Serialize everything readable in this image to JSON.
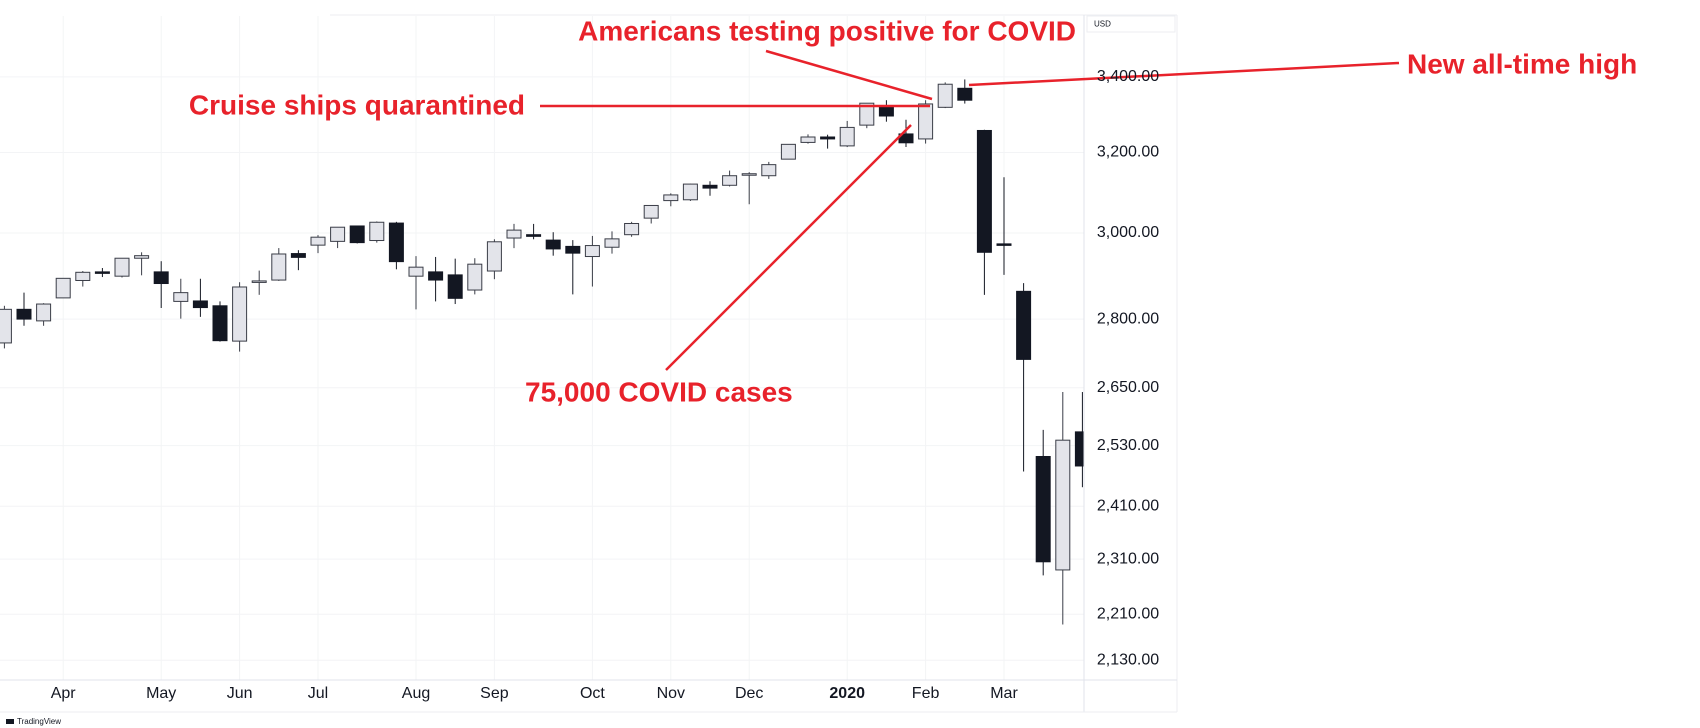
{
  "chart_data": {
    "type": "candlestick",
    "currency": "USD",
    "watermark": "TradingView",
    "categories": [
      null,
      null,
      null,
      "Apr",
      null,
      null,
      null,
      null,
      "May",
      null,
      null,
      null,
      "Jun",
      null,
      null,
      null,
      "Jul",
      null,
      null,
      null,
      null,
      "Aug",
      null,
      null,
      null,
      "Sep",
      null,
      null,
      null,
      null,
      "Oct",
      null,
      null,
      null,
      "Nov",
      null,
      null,
      null,
      "Dec",
      null,
      null,
      null,
      null,
      "2020",
      null,
      null,
      null,
      "Feb",
      null,
      null,
      null,
      "Mar",
      null,
      null,
      null,
      null
    ],
    "open": [
      2747,
      2822,
      2796,
      2848,
      2888,
      2908,
      2898,
      2940,
      2908,
      2840,
      2841,
      2830,
      2751,
      2885,
      2889,
      2951,
      2971,
      2980,
      3017,
      2982,
      3024,
      2898,
      2908,
      2901,
      2866,
      2910,
      2988,
      2996,
      2983,
      2968,
      2944,
      2966,
      2996,
      3036,
      3079,
      3081,
      3117,
      3117,
      3143,
      3141,
      3183,
      3226,
      3240,
      3217,
      3271,
      3321,
      3248,
      3235,
      3318,
      3369,
      3257,
      2974,
      2863,
      2508,
      2290,
      2558
    ],
    "high": [
      2830,
      2860,
      2836,
      2893,
      2910,
      2917,
      2940,
      2954,
      2933,
      2892,
      2892,
      2840,
      2884,
      2911,
      2964,
      2959,
      2995,
      3014,
      3018,
      3028,
      3027,
      2945,
      2943,
      2939,
      2940,
      2985,
      3022,
      3022,
      3002,
      2983,
      2993,
      3004,
      3027,
      3066,
      3097,
      3121,
      3127,
      3154,
      3150,
      3176,
      3221,
      3247,
      3246,
      3282,
      3329,
      3337,
      3285,
      3337,
      3385,
      3393,
      3259,
      3137,
      2882,
      2562,
      2641,
      2641
    ],
    "low": [
      2735,
      2785,
      2785,
      2848,
      2874,
      2896,
      2895,
      2900,
      2825,
      2801,
      2805,
      2750,
      2728,
      2855,
      2887,
      2912,
      2952,
      2964,
      2975,
      2977,
      2914,
      2822,
      2840,
      2834,
      2856,
      2891,
      2964,
      2985,
      2946,
      2856,
      2874,
      2951,
      2991,
      3023,
      3065,
      3078,
      3091,
      3114,
      3070,
      3133,
      3183,
      3223,
      3210,
      3214,
      3263,
      3280,
      3214,
      3223,
      3316,
      3328,
      2855,
      2901,
      2478,
      2280,
      2192,
      2447
    ],
    "close": [
      2822,
      2800,
      2834,
      2893,
      2907,
      2905,
      2940,
      2946,
      2881,
      2860,
      2826,
      2752,
      2873,
      2887,
      2950,
      2942,
      2990,
      3014,
      2977,
      3026,
      2932,
      2919,
      2889,
      2847,
      2926,
      2979,
      3007,
      2992,
      2962,
      2952,
      2970,
      2986,
      3023,
      3067,
      3093,
      3120,
      3110,
      3141,
      3146,
      3169,
      3221,
      3240,
      3235,
      3265,
      3329,
      3295,
      3225,
      3327,
      3380,
      3337,
      2954,
      2972,
      2711,
      2305,
      2541,
      2489
    ],
    "up_color": "#e3e4ea",
    "down_color": "#131722",
    "log_scale": true,
    "grid": true,
    "ylim": [
      2100,
      3570
    ],
    "yticks": [
      {
        "value": 2130,
        "label": "2,130.00"
      },
      {
        "value": 2210,
        "label": "2,210.00"
      },
      {
        "value": 2310,
        "label": "2,310.00"
      },
      {
        "value": 2410,
        "label": "2,410.00"
      },
      {
        "value": 2530,
        "label": "2,530.00"
      },
      {
        "value": 2650,
        "label": "2,650.00"
      },
      {
        "value": 2800,
        "label": "2,800.00"
      },
      {
        "value": 3000,
        "label": "3,000.00"
      },
      {
        "value": 3200,
        "label": "3,200.00"
      },
      {
        "value": 3400,
        "label": "3,400.00"
      }
    ],
    "annotations": [
      "Americans testing positive for COVID",
      "Cruise ships quarantined",
      "75,000 COVID cases",
      "New all-time high"
    ]
  }
}
